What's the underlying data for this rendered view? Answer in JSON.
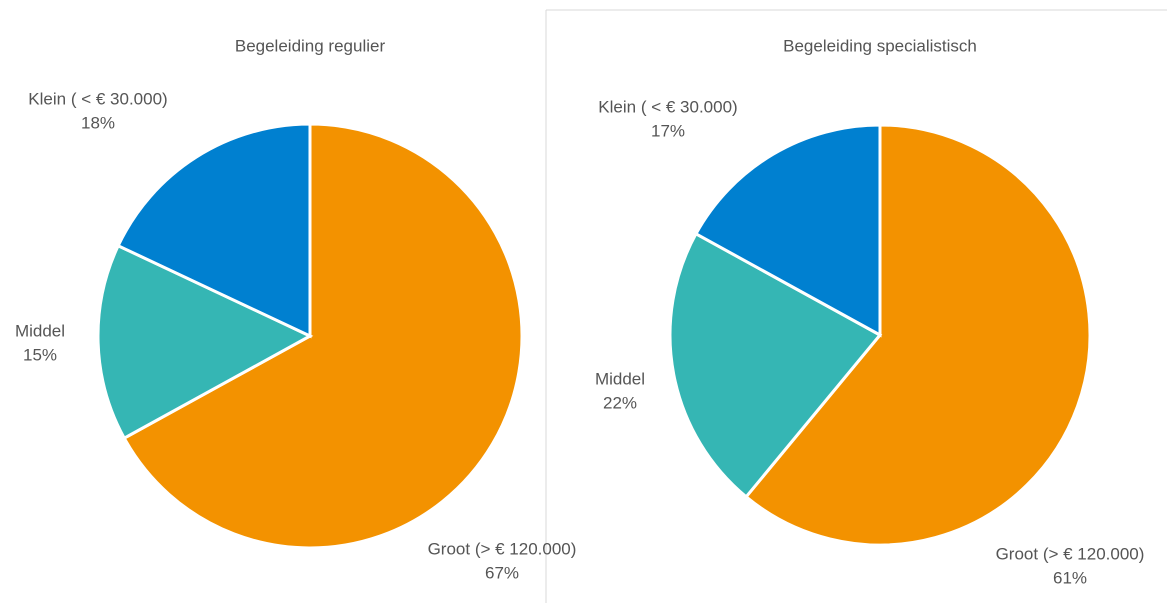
{
  "chart_data": [
    {
      "type": "pie",
      "title": "Begeleiding regulier",
      "categories": [
        "Groot (> € 120.000)",
        "Middel",
        "Klein ( < € 30.000)"
      ],
      "values": [
        67,
        15,
        18
      ],
      "value_labels": [
        "67%",
        "15%",
        "18%"
      ],
      "colors": [
        "#f39200",
        "#35b6b4",
        "#0080d0"
      ]
    },
    {
      "type": "pie",
      "title": "Begeleiding specialistisch",
      "categories": [
        "Groot (> € 120.000)",
        "Middel",
        "Klein ( < € 30.000)"
      ],
      "values": [
        61,
        22,
        17
      ],
      "value_labels": [
        "61%",
        "22%",
        "17%"
      ],
      "colors": [
        "#f39200",
        "#35b6b4",
        "#0080d0"
      ]
    }
  ]
}
